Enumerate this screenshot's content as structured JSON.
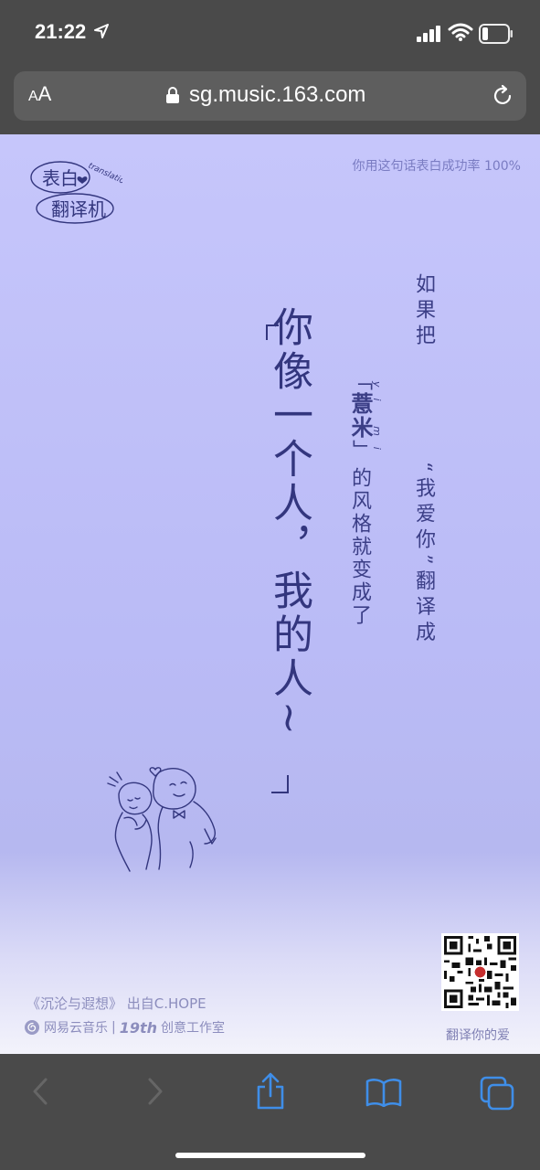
{
  "status_bar": {
    "time": "21:22",
    "icons": [
      "location-arrow-icon",
      "signal-bars-icon",
      "wifi-icon",
      "battery-icon"
    ]
  },
  "url_bar": {
    "text_size_label": "AA",
    "text_size_small": "A",
    "text_size_large": "A",
    "url": "sg.music.163.com"
  },
  "page": {
    "logo": {
      "line1": "表白",
      "line2": "翻译机",
      "arc_text": "translation"
    },
    "success_rate": "你用这句话表白成功率 100%",
    "col_a_pre": "如果把",
    "col_a_highlight": "“我爱你”",
    "col_a_post": "翻译成",
    "col_b_open": "「",
    "col_b_style": "薏米",
    "col_b_close": "」",
    "pinyin": "yi mi",
    "col_c": "的风格就变成了",
    "main_line1": "你像一个人，",
    "main_line2": "我的人~",
    "bracket_open": "「",
    "bracket_close": "」",
    "qr_caption": "翻译你的爱",
    "song_credit": "《沉沦与遐想》 出自C.HOPE",
    "brand": {
      "name": "网易云音乐",
      "separator": "|",
      "studio_num": "19th",
      "studio_label": "创意工作室"
    }
  },
  "colors": {
    "accent_text": "#33367e",
    "page_top": "#c6c6fb",
    "muted_text": "#8c8dbd",
    "ui_bg": "#4a4a4a",
    "toolbar_icon": "#3f8ee8",
    "toolbar_disabled": "#666666"
  }
}
